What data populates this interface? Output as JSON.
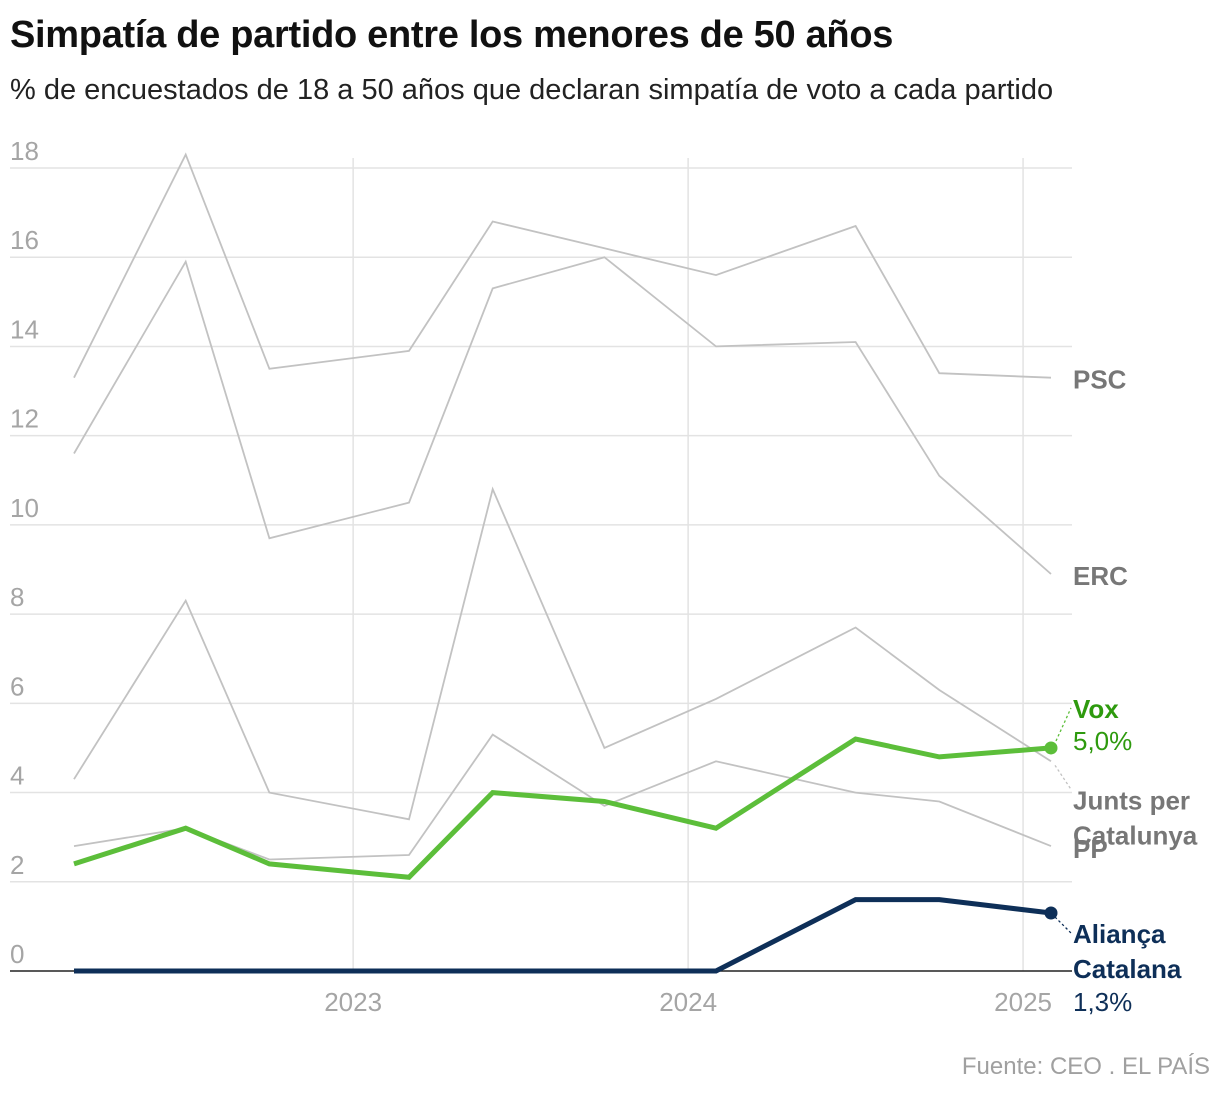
{
  "title": "Simpatía de partido entre los menores de 50 años",
  "subtitle": "% de encuestados de 18 a 50 años que declaran simpatía de voto a cada partido",
  "source": "Fuente: CEO . EL PAÍS",
  "chart_data": {
    "type": "line",
    "title": "Simpatía de partido entre los menores de 50 años",
    "subtitle": "% de encuestados de 18 a 50 años que declaran simpatía de voto a cada partido",
    "xlabel": "",
    "ylabel": "",
    "ylim": [
      0,
      18
    ],
    "xlim": [
      "2022-03",
      "2025-02"
    ],
    "yticks": [
      0,
      2,
      4,
      6,
      8,
      10,
      12,
      14,
      16,
      18
    ],
    "xticks": [
      {
        "date": "2023-01",
        "label": "2023"
      },
      {
        "date": "2024-01",
        "label": "2024"
      },
      {
        "date": "2025-01",
        "label": "2025"
      }
    ],
    "grid": true,
    "x": [
      "2022-03",
      "2022-07",
      "2022-10",
      "2023-03",
      "2023-06",
      "2023-10",
      "2024-02",
      "2024-07",
      "2024-10",
      "2025-02"
    ],
    "series": [
      {
        "name": "PSC",
        "label": "PSC",
        "color": "#c2c2c2",
        "label_color": "#777777",
        "highlight": false,
        "values": [
          13.3,
          18.3,
          13.5,
          13.9,
          16.8,
          16.2,
          15.6,
          16.7,
          13.4,
          13.3
        ]
      },
      {
        "name": "ERC",
        "label": "ERC",
        "color": "#c2c2c2",
        "label_color": "#777777",
        "highlight": false,
        "values": [
          11.6,
          15.9,
          9.7,
          10.5,
          15.3,
          16.0,
          14.0,
          14.1,
          11.1,
          8.9
        ]
      },
      {
        "name": "Junts per Catalunya",
        "label": "Junts per Catalunya",
        "color": "#c2c2c2",
        "label_color": "#777777",
        "highlight": false,
        "values": [
          4.3,
          8.3,
          4.0,
          3.4,
          10.8,
          5.0,
          6.1,
          7.7,
          6.3,
          4.7
        ]
      },
      {
        "name": "PP",
        "label": "PP",
        "color": "#c2c2c2",
        "label_color": "#777777",
        "highlight": false,
        "values": [
          2.8,
          3.2,
          2.5,
          2.6,
          5.3,
          3.7,
          4.7,
          4.0,
          3.8,
          2.8
        ]
      },
      {
        "name": "Vox",
        "label": "Vox",
        "value_label": "5,0%",
        "color": "#5cbe3a",
        "label_color": "#2e9a0e",
        "highlight": true,
        "values": [
          2.4,
          3.2,
          2.4,
          2.1,
          4.0,
          3.8,
          3.2,
          5.2,
          4.8,
          5.0
        ]
      },
      {
        "name": "Aliança Catalana",
        "label": "Aliança Catalana",
        "value_label": "1,3%",
        "color": "#0e2f58",
        "label_color": "#0e2f58",
        "highlight": true,
        "values": [
          0.0,
          0.0,
          0.0,
          0.0,
          0.0,
          0.0,
          0.0,
          1.6,
          1.6,
          1.3
        ]
      }
    ]
  }
}
